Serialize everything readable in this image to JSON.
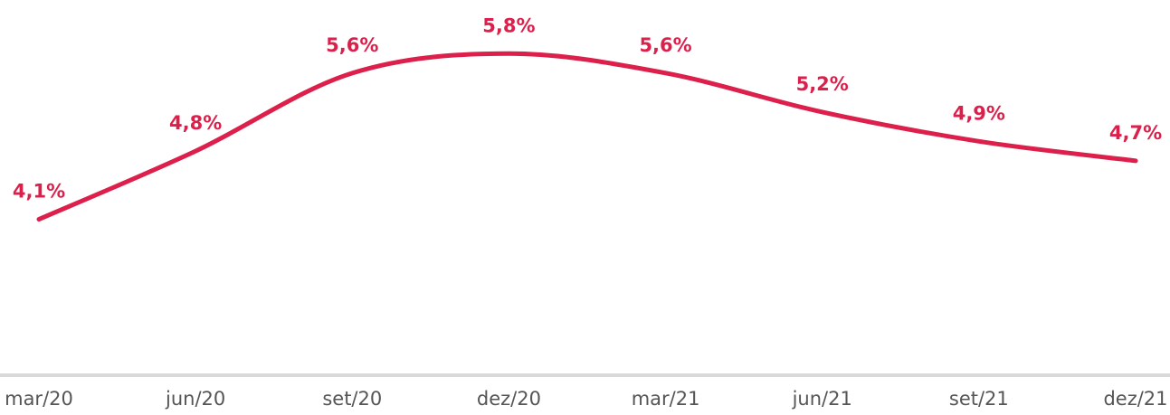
{
  "chart_data": {
    "type": "line",
    "categories": [
      "mar/20",
      "jun/20",
      "set/20",
      "dez/20",
      "mar/21",
      "jun/21",
      "set/21",
      "dez/21"
    ],
    "series": [
      {
        "color": "#dc1f4b",
        "values": [
          4.1,
          4.8,
          5.6,
          5.8,
          5.6,
          5.2,
          4.9,
          4.7
        ],
        "value_labels": [
          "4,1%",
          "4,8%",
          "5,6%",
          "5,8%",
          "5,6%",
          "5,2%",
          "4,9%",
          "4,7%"
        ]
      }
    ],
    "ylim": [
      2.5,
      6.35
    ]
  }
}
